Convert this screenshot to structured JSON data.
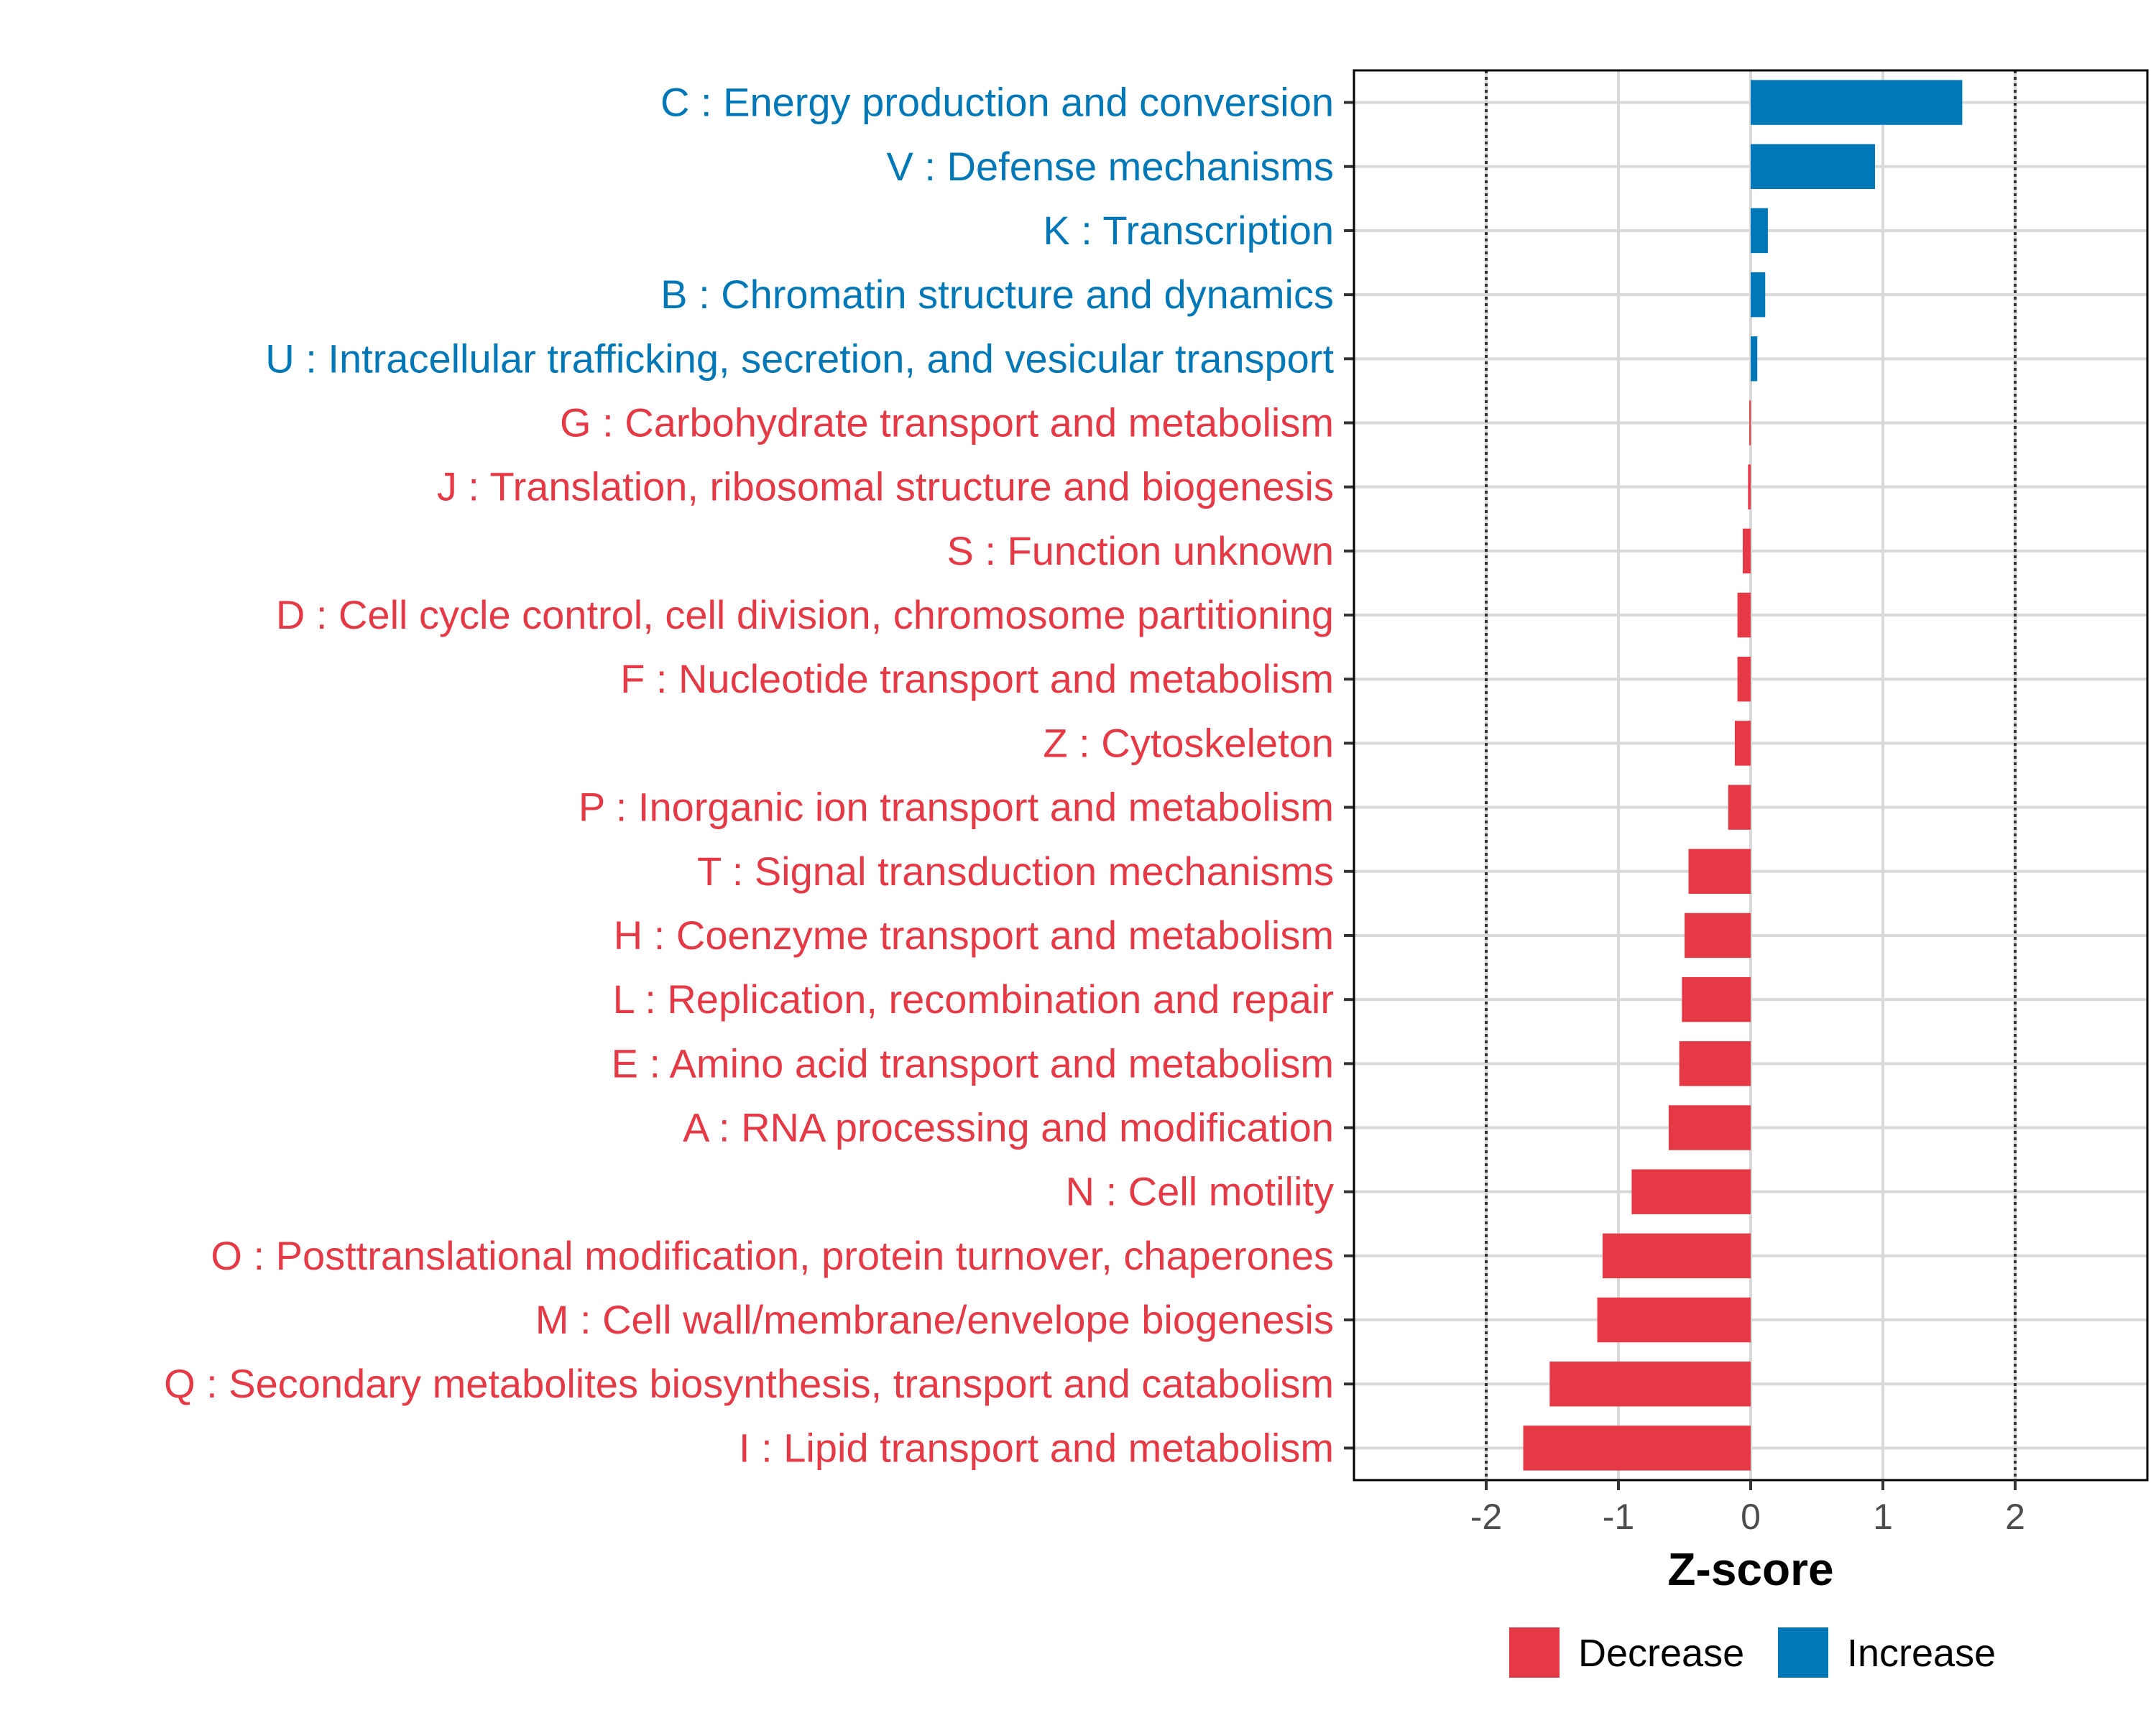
{
  "chart_data": {
    "type": "bar",
    "orientation": "horizontal",
    "title": "",
    "xlabel": "Z-score",
    "ylabel": "",
    "xlim": [
      -3.0,
      3.0
    ],
    "xticks": [
      -2,
      -1,
      0,
      1,
      2
    ],
    "xtick_labels": [
      "-2",
      "-1",
      "0",
      "1",
      "2"
    ],
    "reference_lines": [
      -2,
      2
    ],
    "grid": true,
    "legend": {
      "placement": "bottom",
      "entries": [
        {
          "label": "Decrease",
          "color": "#E63946"
        },
        {
          "label": "Increase",
          "color": "#0077B6"
        }
      ]
    },
    "categories": [
      "C : Energy production and conversion",
      "V : Defense mechanisms",
      "K : Transcription",
      "B : Chromatin structure and dynamics",
      "U : Intracellular trafficking, secretion, and vesicular transport",
      "G : Carbohydrate transport and metabolism",
      "J : Translation, ribosomal structure and biogenesis",
      "S : Function unknown",
      "D : Cell cycle control, cell division, chromosome partitioning",
      "F : Nucleotide transport and metabolism",
      "Z : Cytoskeleton",
      "P : Inorganic ion transport and metabolism",
      "T : Signal transduction mechanisms",
      "H : Coenzyme transport and metabolism",
      "L : Replication, recombination and repair",
      "E : Amino acid transport and metabolism",
      "A : RNA processing and modification",
      "N : Cell motility",
      "O : Posttranslational modification, protein turnover, chaperones",
      "M : Cell wall/membrane/envelope biogenesis",
      "Q : Secondary metabolites biosynthesis, transport and catabolism",
      "I : Lipid transport and metabolism"
    ],
    "values": [
      1.6,
      0.94,
      0.13,
      0.11,
      0.05,
      -0.01,
      -0.02,
      -0.06,
      -0.1,
      -0.1,
      -0.12,
      -0.17,
      -0.47,
      -0.5,
      -0.52,
      -0.54,
      -0.62,
      -0.9,
      -1.12,
      -1.16,
      -1.52,
      -1.72
    ]
  }
}
